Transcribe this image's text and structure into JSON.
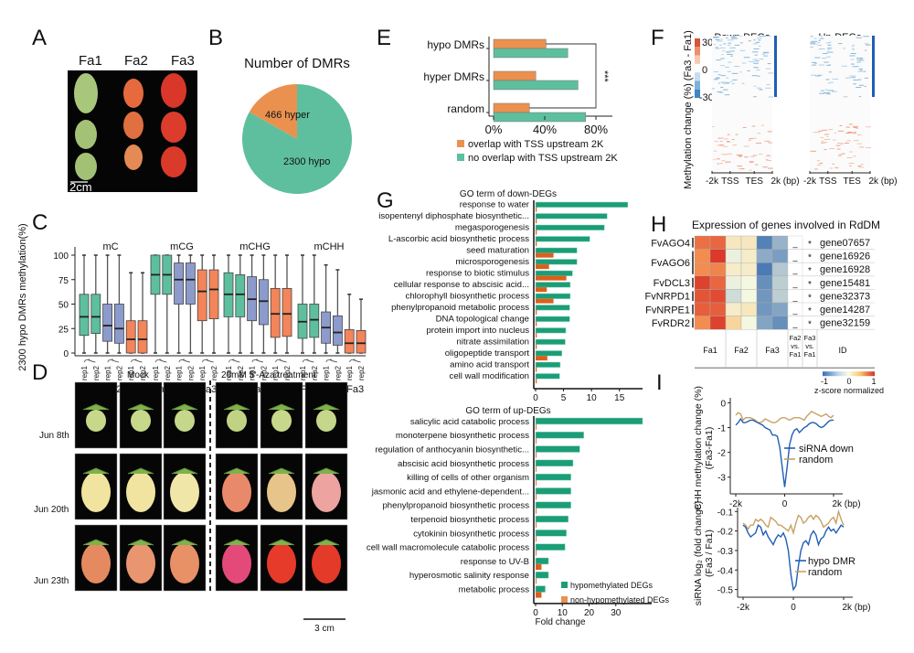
{
  "panels": {
    "A": "A",
    "B": "B",
    "C": "C",
    "D": "D",
    "E": "E",
    "F": "F",
    "G": "G",
    "H": "H",
    "I": "I"
  },
  "colors": {
    "teal": "#5dbf9e",
    "orange": "#ea9150",
    "slate": "#8c9bcc",
    "coral": "#f4845a",
    "go_green": "#1b9d77",
    "go_orange": "#dc5f1a",
    "blue_line": "#1f5fb5",
    "tan_line": "#c9a064"
  },
  "panelA": {
    "labels": [
      "Fa1",
      "Fa2",
      "Fa3"
    ],
    "scale_bar": "2cm"
  },
  "panelD": {
    "group_labels": [
      "Mock",
      "20mM 5'-Aza treatment"
    ],
    "row_labels": [
      "Jun 8th",
      "Jun 20th",
      "Jun 23th"
    ],
    "scale_bar": "3 cm"
  },
  "panelF": {
    "ylabel": "Methylation change (%) (Fa3 - Fa1)",
    "colorbar_ticks": [
      "30",
      "0",
      "-30"
    ],
    "titles": [
      "Down-DEGs",
      "Up-DEGs"
    ],
    "xticks": [
      "-2k",
      "TSS",
      "TES",
      "2k (bp)"
    ]
  },
  "panelH": {
    "title": "Expression of genes involved in RdDM",
    "gene_names": [
      "FvAGO4",
      "FvAGO6",
      "FvDCL3",
      "FvNRPD1",
      "FvNRPE1",
      "FvRDR2"
    ],
    "ids": [
      "gene07657",
      "gene16926",
      "gene16928",
      "gene15481",
      "gene32373",
      "gene14287",
      "gene32159"
    ],
    "fa2_vs_fa1": [
      "_",
      "_",
      "_",
      "_",
      "_",
      "_",
      "_"
    ],
    "fa3_vs_fa1": [
      "*",
      "*",
      "*",
      "*",
      "*",
      "*",
      "*"
    ],
    "col_headers": [
      "Fa1",
      "Fa2",
      "Fa3",
      "Fa2 vs. Fa1",
      "Fa3 vs. Fa1",
      "ID"
    ],
    "colorbar_ticks": [
      "-1",
      "0",
      "1"
    ],
    "colorbar_label": "z-score normalized",
    "zscores": [
      [
        0.65,
        0.7,
        0.15,
        0.15,
        -0.85,
        -0.5
      ],
      [
        0.5,
        0.95,
        -0.05,
        0.1,
        -0.55,
        -0.65
      ],
      [
        0.5,
        0.55,
        0.1,
        0.1,
        -0.9,
        -0.35
      ],
      [
        0.9,
        0.7,
        -0.05,
        0.0,
        -0.75,
        -0.3
      ],
      [
        0.8,
        0.85,
        -0.2,
        0.0,
        -0.7,
        -0.3
      ],
      [
        0.75,
        0.75,
        0.1,
        0.15,
        -0.7,
        -0.6
      ],
      [
        0.5,
        0.9,
        0.3,
        0.0,
        -0.6,
        -0.75
      ]
    ]
  },
  "chart_data": [
    {
      "id": "B",
      "type": "pie",
      "title": "Number of DMRs",
      "slices": [
        {
          "label": "466 hyper",
          "value": 466,
          "color": "#ea9150"
        },
        {
          "label": "2300 hypo",
          "value": 2300,
          "color": "#5dbf9e"
        }
      ]
    },
    {
      "id": "C",
      "type": "box",
      "ylabel": "2300 hypo DMRs methylation(%)",
      "ylim": [
        0,
        100
      ],
      "yticks": [
        0,
        25,
        50,
        75,
        100
      ],
      "groups": [
        "mC",
        "mCG",
        "mCHG",
        "mCHH"
      ],
      "sample_labels": [
        "Fa1",
        "Fa2",
        "Fa3"
      ],
      "rep_labels": [
        "rep1",
        "rep2"
      ],
      "boxes": [
        {
          "group": "mC",
          "sample": "Fa1",
          "rep": "rep1",
          "min": 0,
          "q1": 18,
          "median": 37,
          "q3": 60,
          "max": 100
        },
        {
          "group": "mC",
          "sample": "Fa1",
          "rep": "rep2",
          "min": 0,
          "q1": 20,
          "median": 37,
          "q3": 60,
          "max": 100
        },
        {
          "group": "mC",
          "sample": "Fa2",
          "rep": "rep1",
          "min": 0,
          "q1": 12,
          "median": 28,
          "q3": 50,
          "max": 100
        },
        {
          "group": "mC",
          "sample": "Fa2",
          "rep": "rep2",
          "min": 0,
          "q1": 10,
          "median": 25,
          "q3": 50,
          "max": 100
        },
        {
          "group": "mC",
          "sample": "Fa3",
          "rep": "rep1",
          "min": 0,
          "q1": 0,
          "median": 14,
          "q3": 33,
          "max": 82
        },
        {
          "group": "mC",
          "sample": "Fa3",
          "rep": "rep2",
          "min": 0,
          "q1": 0,
          "median": 14,
          "q3": 33,
          "max": 82
        },
        {
          "group": "mCG",
          "sample": "Fa1",
          "rep": "rep1",
          "min": 0,
          "q1": 60,
          "median": 80,
          "q3": 100,
          "max": 100
        },
        {
          "group": "mCG",
          "sample": "Fa1",
          "rep": "rep2",
          "min": 0,
          "q1": 60,
          "median": 80,
          "q3": 100,
          "max": 100
        },
        {
          "group": "mCG",
          "sample": "Fa2",
          "rep": "rep1",
          "min": 0,
          "q1": 50,
          "median": 75,
          "q3": 92,
          "max": 100
        },
        {
          "group": "mCG",
          "sample": "Fa2",
          "rep": "rep2",
          "min": 0,
          "q1": 50,
          "median": 75,
          "q3": 92,
          "max": 100
        },
        {
          "group": "mCG",
          "sample": "Fa3",
          "rep": "rep1",
          "min": 0,
          "q1": 33,
          "median": 63,
          "q3": 85,
          "max": 100
        },
        {
          "group": "mCG",
          "sample": "Fa3",
          "rep": "rep2",
          "min": 0,
          "q1": 35,
          "median": 65,
          "q3": 85,
          "max": 100
        },
        {
          "group": "mCHG",
          "sample": "Fa1",
          "rep": "rep1",
          "min": 0,
          "q1": 37,
          "median": 60,
          "q3": 82,
          "max": 100
        },
        {
          "group": "mCHG",
          "sample": "Fa1",
          "rep": "rep2",
          "min": 0,
          "q1": 37,
          "median": 60,
          "q3": 80,
          "max": 100
        },
        {
          "group": "mCHG",
          "sample": "Fa2",
          "rep": "rep1",
          "min": 0,
          "q1": 33,
          "median": 55,
          "q3": 78,
          "max": 100
        },
        {
          "group": "mCHG",
          "sample": "Fa2",
          "rep": "rep2",
          "min": 0,
          "q1": 29,
          "median": 53,
          "q3": 75,
          "max": 100
        },
        {
          "group": "mCHG",
          "sample": "Fa3",
          "rep": "rep1",
          "min": 0,
          "q1": 16,
          "median": 40,
          "q3": 66,
          "max": 100
        },
        {
          "group": "mCHG",
          "sample": "Fa3",
          "rep": "rep2",
          "min": 0,
          "q1": 17,
          "median": 40,
          "q3": 66,
          "max": 100
        },
        {
          "group": "mCHH",
          "sample": "Fa1",
          "rep": "rep1",
          "min": 0,
          "q1": 15,
          "median": 32,
          "q3": 50,
          "max": 100
        },
        {
          "group": "mCHH",
          "sample": "Fa1",
          "rep": "rep2",
          "min": 0,
          "q1": 16,
          "median": 34,
          "q3": 50,
          "max": 100
        },
        {
          "group": "mCHH",
          "sample": "Fa2",
          "rep": "rep1",
          "min": 0,
          "q1": 10,
          "median": 26,
          "q3": 42,
          "max": 90
        },
        {
          "group": "mCHH",
          "sample": "Fa2",
          "rep": "rep2",
          "min": 0,
          "q1": 8,
          "median": 21,
          "q3": 38,
          "max": 85
        },
        {
          "group": "mCHH",
          "sample": "Fa3",
          "rep": "rep1",
          "min": 0,
          "q1": 0,
          "median": 10,
          "q3": 24,
          "max": 60
        },
        {
          "group": "mCHH",
          "sample": "Fa3",
          "rep": "rep2",
          "min": 0,
          "q1": 0,
          "median": 10,
          "q3": 23,
          "max": 55
        }
      ]
    },
    {
      "id": "E",
      "type": "bar",
      "orientation": "horizontal",
      "categories": [
        "hypo DMRs",
        "hyper DMRs",
        "random"
      ],
      "series": [
        {
          "name": "overlap with TSS upstream 2K",
          "values": [
            41,
            33,
            28
          ],
          "color": "#ea9150"
        },
        {
          "name": "no overlap with TSS upstream 2K",
          "values": [
            58,
            66,
            72
          ],
          "color": "#5dbf9e"
        }
      ],
      "xticks": [
        "0%",
        "40%",
        "80%"
      ],
      "xlim": [
        0,
        85
      ],
      "annotation": "***"
    },
    {
      "id": "G-down",
      "type": "bar",
      "orientation": "horizontal",
      "title": "GO term of down-DEGs",
      "categories": [
        "response to water",
        "isopentenyl diphosphate biosynthetic...",
        "megasporogenesis",
        "L-ascorbic acid biosynthetic process",
        "seed maturation",
        "microsporogenesis",
        "response to biotic stimulus",
        "cellular response to abscisic acid...",
        "chlorophyll biosynthetic process",
        "phenylpropanoid metabolic process",
        "DNA topological change",
        "protein import into nucleus",
        "nitrate assimilation",
        "oligopeptide transport",
        "amino acid transport",
        "cell wall modification"
      ],
      "series": [
        {
          "name": "hypomethylated DEGs",
          "values": [
            16.5,
            12.8,
            12.3,
            9.7,
            7.4,
            7.4,
            6.6,
            6.2,
            6.2,
            6.1,
            6.1,
            5.4,
            5.3,
            4.7,
            4.4,
            4.3
          ],
          "color": "#1b9d77"
        },
        {
          "name": "non-hypomethylated DEGs",
          "values": [
            0.2,
            0.2,
            0.2,
            0.2,
            3.2,
            2.4,
            5.5,
            2.0,
            3.2,
            0.2,
            0.2,
            0.2,
            0.2,
            2.1,
            0.2,
            0.2
          ],
          "color": "#dc5f1a"
        }
      ],
      "xticks": [
        "0",
        "5",
        "10",
        "15"
      ],
      "xlim": [
        0,
        17.5
      ]
    },
    {
      "id": "G-up",
      "type": "bar",
      "orientation": "horizontal",
      "title": "GO term of up-DEGs",
      "categories": [
        "salicylic acid catabolic process",
        "monoterpene biosynthetic process",
        "regulation of anthocyanin biosynthetic...",
        "abscisic acid biosynthetic process",
        "killing of cells of other organism",
        "jasmonic acid and ethylene-dependent...",
        "phenylpropanoid biosynthetic process",
        "terpenoid biosynthetic process",
        "cytokinin biosynthetic process",
        "cell wall macromolecule catabolic process",
        "response to UV-B",
        "hyperosmotic salinity response",
        "metabolic process"
      ],
      "series": [
        {
          "name": "hypomethylated DEGs",
          "values": [
            40,
            18,
            16.5,
            14,
            13.2,
            13.2,
            13.2,
            12.2,
            11.5,
            11,
            4.8,
            4.8,
            3.6
          ],
          "color": "#1b9d77"
        },
        {
          "name": "non-hypomethylated DEGs",
          "values": [
            0.3,
            0.3,
            0.3,
            0.3,
            0.3,
            0.3,
            0.3,
            0.3,
            0.3,
            0.3,
            2.2,
            0.3,
            2.2
          ],
          "color": "#dc5f1a"
        }
      ],
      "xticks": [
        "0",
        "10",
        "20",
        "30"
      ],
      "xlim": [
        0,
        40
      ],
      "xlabel": "Fold change",
      "legend": [
        "hypomethylated DEGs",
        "non-hypomethylated DEGs"
      ]
    },
    {
      "id": "I-top",
      "type": "line",
      "ylabel": "CHH methylation change (%) (Fa3-Fa1)",
      "yticks": [
        "0",
        "-1",
        "-2",
        "-3"
      ],
      "ylim": [
        -3.6,
        0.2
      ],
      "xticks": [
        "-2k",
        "0",
        "2k (bp)"
      ],
      "xlim": [
        -2,
        2
      ],
      "series": [
        {
          "name": "siRNA down",
          "color": "#1f5fb5",
          "x": [
            -2,
            -1.9,
            -1.8,
            -1.7,
            -1.6,
            -1.5,
            -1.4,
            -1.3,
            -1.2,
            -1.1,
            -1.0,
            -0.9,
            -0.8,
            -0.7,
            -0.6,
            -0.5,
            -0.4,
            -0.3,
            -0.2,
            -0.1,
            0,
            0.1,
            0.2,
            0.3,
            0.4,
            0.5,
            0.6,
            0.7,
            0.8,
            0.9,
            1.0,
            1.1,
            1.2,
            1.3,
            1.4,
            1.5,
            1.6,
            1.7,
            1.8,
            1.9,
            2.0
          ],
          "y": [
            -0.9,
            -0.8,
            -0.65,
            -0.8,
            -0.8,
            -0.75,
            -0.7,
            -0.7,
            -0.75,
            -0.8,
            -0.85,
            -0.9,
            -1.0,
            -1.05,
            -1.1,
            -1.3,
            -1.3,
            -1.35,
            -1.8,
            -2.6,
            -3.4,
            -2.6,
            -1.7,
            -1.3,
            -1.1,
            -1.05,
            -1.2,
            -1.1,
            -1.0,
            -0.95,
            -0.85,
            -0.8,
            -0.8,
            -0.85,
            -0.95,
            -1.0,
            -0.95,
            -0.85,
            -0.75,
            -0.7,
            -0.7
          ]
        },
        {
          "name": "random",
          "color": "#c9a064",
          "x": [
            -2,
            -1.9,
            -1.8,
            -1.7,
            -1.6,
            -1.5,
            -1.4,
            -1.3,
            -1.2,
            -1.1,
            -1.0,
            -0.9,
            -0.8,
            -0.7,
            -0.6,
            -0.5,
            -0.4,
            -0.3,
            -0.2,
            -0.1,
            0,
            0.1,
            0.2,
            0.3,
            0.4,
            0.5,
            0.6,
            0.7,
            0.8,
            0.9,
            1.0,
            1.1,
            1.2,
            1.3,
            1.4,
            1.5,
            1.6,
            1.7,
            1.8,
            1.9,
            2.0
          ],
          "y": [
            -0.5,
            -0.4,
            -0.45,
            -0.7,
            -0.6,
            -0.6,
            -0.6,
            -0.65,
            -0.7,
            -0.8,
            -0.8,
            -0.75,
            -0.65,
            -0.7,
            -0.75,
            -0.8,
            -0.8,
            -0.75,
            -0.65,
            -0.6,
            -0.6,
            -0.65,
            -0.7,
            -0.65,
            -0.6,
            -0.6,
            -0.6,
            -0.65,
            -0.7,
            -0.55,
            -0.45,
            -0.35,
            -0.4,
            -0.45,
            -0.5,
            -0.55,
            -0.5,
            -0.45,
            -0.55,
            -0.6,
            -0.5
          ]
        }
      ]
    },
    {
      "id": "I-bottom",
      "type": "line",
      "ylabel": "siRNA log2 (fold change) (Fa3 / Fa1)",
      "yticks": [
        "-0.1",
        "-0.2",
        "-0.3",
        "-0.4",
        "-0.5"
      ],
      "ylim": [
        -0.53,
        -0.08
      ],
      "xticks": [
        "-2k",
        "0",
        "2k (bp)"
      ],
      "xlim": [
        -2,
        2
      ],
      "series": [
        {
          "name": "hypo DMR",
          "color": "#1f5fb5",
          "x": [
            -2,
            -1.9,
            -1.8,
            -1.7,
            -1.6,
            -1.5,
            -1.4,
            -1.3,
            -1.2,
            -1.1,
            -1.0,
            -0.9,
            -0.8,
            -0.7,
            -0.6,
            -0.5,
            -0.4,
            -0.3,
            -0.2,
            -0.1,
            0,
            0.1,
            0.2,
            0.3,
            0.4,
            0.5,
            0.6,
            0.7,
            0.8,
            0.9,
            1.0,
            1.1,
            1.2,
            1.3,
            1.4,
            1.5,
            1.6,
            1.7,
            1.8,
            1.9,
            2.0
          ],
          "y": [
            -0.17,
            -0.18,
            -0.21,
            -0.23,
            -0.22,
            -0.21,
            -0.17,
            -0.18,
            -0.22,
            -0.2,
            -0.23,
            -0.25,
            -0.27,
            -0.24,
            -0.22,
            -0.23,
            -0.21,
            -0.24,
            -0.3,
            -0.42,
            -0.5,
            -0.48,
            -0.38,
            -0.3,
            -0.26,
            -0.25,
            -0.27,
            -0.22,
            -0.2,
            -0.22,
            -0.27,
            -0.24,
            -0.23,
            -0.2,
            -0.18,
            -0.2,
            -0.19,
            -0.21,
            -0.19,
            -0.17,
            -0.18
          ]
        },
        {
          "name": "random",
          "color": "#c9a064",
          "x": [
            -2,
            -1.9,
            -1.8,
            -1.7,
            -1.6,
            -1.5,
            -1.4,
            -1.3,
            -1.2,
            -1.1,
            -1.0,
            -0.9,
            -0.8,
            -0.7,
            -0.6,
            -0.5,
            -0.4,
            -0.3,
            -0.2,
            -0.1,
            0,
            0.1,
            0.2,
            0.3,
            0.4,
            0.5,
            0.6,
            0.7,
            0.8,
            0.9,
            1.0,
            1.1,
            1.2,
            1.3,
            1.4,
            1.5,
            1.6,
            1.7,
            1.8,
            1.9,
            2.0
          ],
          "y": [
            -0.16,
            -0.17,
            -0.19,
            -0.17,
            -0.17,
            -0.14,
            -0.15,
            -0.14,
            -0.15,
            -0.17,
            -0.18,
            -0.13,
            -0.14,
            -0.15,
            -0.17,
            -0.17,
            -0.18,
            -0.19,
            -0.2,
            -0.17,
            -0.21,
            -0.16,
            -0.12,
            -0.13,
            -0.16,
            -0.15,
            -0.13,
            -0.12,
            -0.14,
            -0.12,
            -0.13,
            -0.15,
            -0.18,
            -0.17,
            -0.16,
            -0.14,
            -0.13,
            -0.16,
            -0.1,
            -0.14,
            -0.17
          ]
        }
      ]
    }
  ]
}
